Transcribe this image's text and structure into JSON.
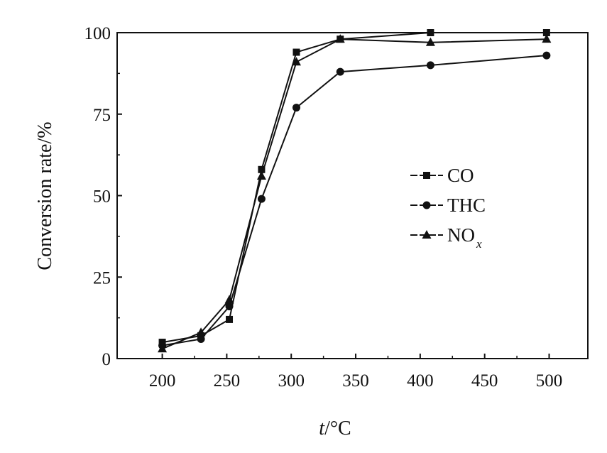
{
  "chart_data": {
    "type": "line",
    "title": "",
    "xlabel": {
      "var": "t",
      "unit": "/°C"
    },
    "ylabel": "Conversion rate/%",
    "xlim": [
      165,
      530
    ],
    "ylim": [
      0,
      100
    ],
    "xticks": [
      200,
      250,
      300,
      350,
      400,
      450,
      500
    ],
    "yticks": [
      0,
      25,
      50,
      75,
      100
    ],
    "grid": false,
    "legend_position": "center-right",
    "series": [
      {
        "name": "CO",
        "marker": "square",
        "x": [
          200,
          230,
          252,
          277,
          304,
          338,
          408,
          498
        ],
        "y": [
          5,
          7,
          12,
          58,
          94,
          98,
          100,
          100
        ]
      },
      {
        "name": "THC",
        "marker": "circle",
        "x": [
          200,
          230,
          252,
          277,
          304,
          338,
          408,
          498
        ],
        "y": [
          4,
          6,
          16,
          49,
          77,
          88,
          90,
          93
        ]
      },
      {
        "name": "NO",
        "name_subscript": "x",
        "marker": "triangle",
        "x": [
          200,
          230,
          252,
          277,
          304,
          338,
          408,
          498
        ],
        "y": [
          3,
          8,
          18,
          56,
          91,
          98,
          97,
          98
        ]
      }
    ]
  }
}
